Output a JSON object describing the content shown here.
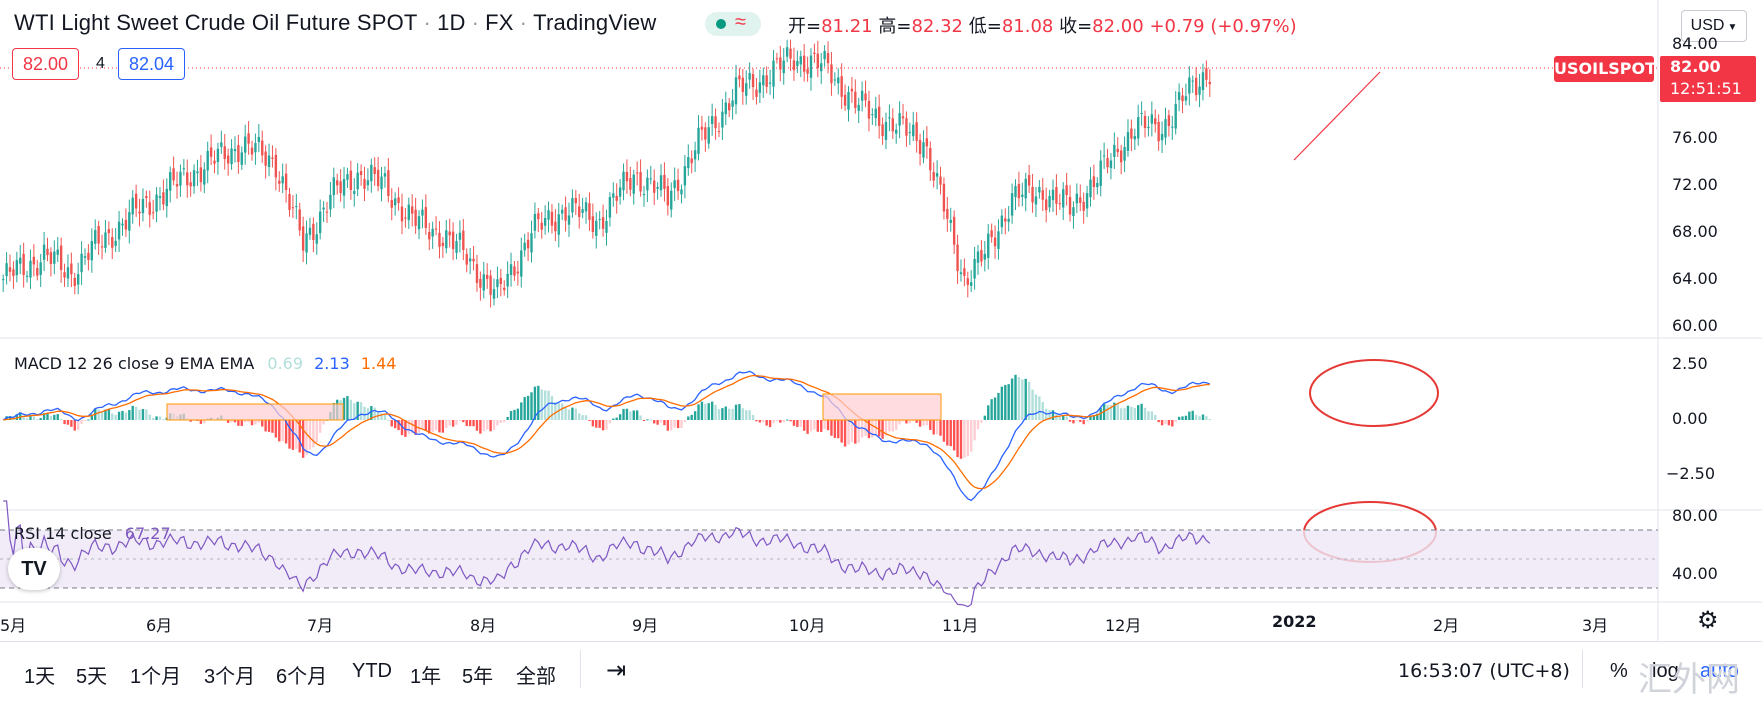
{
  "header": {
    "symbol_title": "WTI Light Sweet Crude Oil Future SPOT",
    "interval": "1D",
    "exchange": "FX",
    "platform": "TradingView",
    "ohlc": {
      "open_label": "开=",
      "open": "81.21",
      "high_label": "高=",
      "high": "82.32",
      "low_label": "低=",
      "low": "81.08",
      "close_label": "收=",
      "close": "82.00",
      "change": "+0.79 (+0.97%)"
    },
    "sell_price": "82.00",
    "spread": "4",
    "buy_price": "82.04",
    "currency": "USD"
  },
  "price_axis": {
    "labels": [
      "84.00",
      "76.00",
      "72.00",
      "68.00",
      "64.00",
      "60.00"
    ],
    "current_symbol_tag": "USOILSPOT",
    "current_price": "82.00",
    "countdown": "12:51:51"
  },
  "macd": {
    "legend_title": "MACD 12 26 close 9 EMA EMA",
    "hist": "0.69",
    "macd": "2.13",
    "signal": "1.44",
    "axis_labels": [
      "2.50",
      "0.00",
      "−2.50"
    ],
    "colors": {
      "macd_line": "#2962ff",
      "signal_line": "#ff6d00",
      "hist_pos_strong": "#26a69a",
      "hist_pos_weak": "#b2dfdb",
      "hist_neg_strong": "#ff5252",
      "hist_neg_weak": "#ffcdd2"
    }
  },
  "rsi": {
    "legend_title": "RSI 14 close",
    "value": "67.27",
    "axis_labels": [
      "80.00",
      "40.00"
    ],
    "colors": {
      "line": "#7e57c2",
      "band": "#ede7f6"
    }
  },
  "time_axis": {
    "labels": [
      "5月",
      "6月",
      "7月",
      "8月",
      "9月",
      "10月",
      "11月",
      "12月",
      "2022",
      "2月",
      "3月"
    ]
  },
  "timeframes": [
    "1天",
    "5天",
    "1个月",
    "3个月",
    "6个月",
    "YTD",
    "1年",
    "5年",
    "全部"
  ],
  "bottom_right": {
    "clock": "16:53:07 (UTC+8)",
    "percent": "%",
    "log": "log",
    "auto": "auto"
  },
  "watermark": "汇外网",
  "logo_text": "TV",
  "colors": {
    "up": "#26a69a",
    "down": "#ef5350",
    "accent_red": "#f23645",
    "blue": "#2962ff"
  }
}
